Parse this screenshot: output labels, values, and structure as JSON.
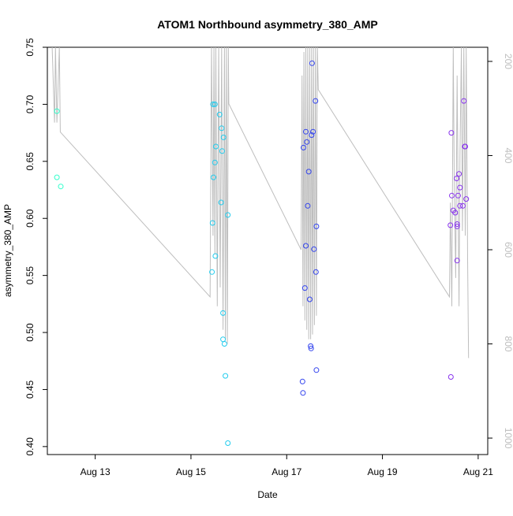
{
  "chart_data": {
    "type": "scatter",
    "title": "ATOM1 Northbound asymmetry_380_AMP",
    "xlabel": "Date",
    "ylabel": "asymmetry_380_AMP",
    "x_unit": "days (August)",
    "xlim": [
      12.0,
      21.2
    ],
    "ylim": [
      0.393,
      0.75
    ],
    "x_ticks": [
      {
        "value": 13,
        "label": "Aug 13"
      },
      {
        "value": 15,
        "label": "Aug 15"
      },
      {
        "value": 17,
        "label": "Aug 17"
      },
      {
        "value": 19,
        "label": "Aug 19"
      },
      {
        "value": 21,
        "label": "Aug 21"
      }
    ],
    "y_ticks": [
      {
        "value": 0.4,
        "label": "0.40"
      },
      {
        "value": 0.45,
        "label": "0.45"
      },
      {
        "value": 0.5,
        "label": "0.50"
      },
      {
        "value": 0.55,
        "label": "0.55"
      },
      {
        "value": 0.6,
        "label": "0.60"
      },
      {
        "value": 0.65,
        "label": "0.65"
      },
      {
        "value": 0.7,
        "label": "0.70"
      },
      {
        "value": 0.75,
        "label": "0.75"
      }
    ],
    "y2_reversed": true,
    "y2lim": [
      170,
      1035
    ],
    "y2_ticks": [
      {
        "value": 200,
        "label": "200"
      },
      {
        "value": 400,
        "label": "400"
      },
      {
        "value": 600,
        "label": "600"
      },
      {
        "value": 800,
        "label": "800"
      },
      {
        "value": 1000,
        "label": "1000"
      }
    ],
    "grid": false,
    "legend": "none",
    "colors": {
      "line": "#bebebe",
      "axis": "#000000",
      "secondary_axis_text": "#bebebe"
    },
    "series": [
      {
        "color": "#33ffcc",
        "points": [
          [
            12.2,
            0.694
          ],
          [
            12.2,
            0.636
          ],
          [
            12.28,
            0.628
          ]
        ]
      },
      {
        "color": "#22ccee",
        "points": [
          [
            15.46,
            0.7
          ],
          [
            15.47,
            0.636
          ],
          [
            15.45,
            0.596
          ],
          [
            15.44,
            0.553
          ],
          [
            15.5,
            0.7
          ],
          [
            15.52,
            0.663
          ],
          [
            15.5,
            0.649
          ],
          [
            15.51,
            0.567
          ],
          [
            15.6,
            0.691
          ],
          [
            15.64,
            0.679
          ],
          [
            15.65,
            0.659
          ],
          [
            15.68,
            0.671
          ],
          [
            15.63,
            0.614
          ],
          [
            15.67,
            0.517
          ],
          [
            15.67,
            0.494
          ],
          [
            15.7,
            0.49
          ],
          [
            15.72,
            0.462
          ],
          [
            15.77,
            0.603
          ],
          [
            15.77,
            0.403
          ]
        ]
      },
      {
        "color": "#3344ee",
        "points": [
          [
            17.35,
            0.662
          ],
          [
            17.38,
            0.539
          ],
          [
            17.4,
            0.676
          ],
          [
            17.4,
            0.576
          ],
          [
            17.42,
            0.667
          ],
          [
            17.44,
            0.611
          ],
          [
            17.46,
            0.641
          ],
          [
            17.48,
            0.529
          ],
          [
            17.5,
            0.488
          ],
          [
            17.51,
            0.486
          ],
          [
            17.52,
            0.673
          ],
          [
            17.53,
            0.736
          ],
          [
            17.55,
            0.676
          ],
          [
            17.57,
            0.573
          ],
          [
            17.6,
            0.703
          ],
          [
            17.62,
            0.593
          ],
          [
            17.61,
            0.553
          ],
          [
            17.62,
            0.467
          ],
          [
            17.33,
            0.457
          ],
          [
            17.34,
            0.447
          ]
        ]
      },
      {
        "color": "#8833ee",
        "points": [
          [
            20.42,
            0.594
          ],
          [
            20.44,
            0.675
          ],
          [
            20.45,
            0.62
          ],
          [
            20.48,
            0.607
          ],
          [
            20.52,
            0.605
          ],
          [
            20.55,
            0.635
          ],
          [
            20.56,
            0.595
          ],
          [
            20.56,
            0.593
          ],
          [
            20.56,
            0.563
          ],
          [
            20.58,
            0.62
          ],
          [
            20.6,
            0.639
          ],
          [
            20.62,
            0.611
          ],
          [
            20.62,
            0.627
          ],
          [
            20.68,
            0.611
          ],
          [
            20.7,
            0.703
          ],
          [
            20.72,
            0.663
          ],
          [
            20.73,
            0.663
          ],
          [
            20.75,
            0.617
          ],
          [
            20.43,
            0.461
          ]
        ]
      }
    ],
    "line_series": {
      "axis": "secondary",
      "points": [
        [
          12.1,
          170
        ],
        [
          12.15,
          330
        ],
        [
          12.17,
          170
        ],
        [
          12.2,
          330
        ],
        [
          12.25,
          170
        ],
        [
          12.27,
          350
        ],
        [
          15.4,
          700
        ],
        [
          15.43,
          170
        ],
        [
          15.46,
          570
        ],
        [
          15.48,
          170
        ],
        [
          15.5,
          610
        ],
        [
          15.52,
          170
        ],
        [
          15.55,
          720
        ],
        [
          15.58,
          170
        ],
        [
          15.61,
          680
        ],
        [
          15.64,
          170
        ],
        [
          15.67,
          770
        ],
        [
          15.7,
          170
        ],
        [
          15.72,
          790
        ],
        [
          15.74,
          170
        ],
        [
          15.76,
          800
        ],
        [
          15.78,
          170
        ],
        [
          15.79,
          290
        ],
        [
          17.3,
          600
        ],
        [
          17.32,
          230
        ],
        [
          17.34,
          720
        ],
        [
          17.36,
          180
        ],
        [
          17.38,
          750
        ],
        [
          17.4,
          170
        ],
        [
          17.42,
          770
        ],
        [
          17.44,
          170
        ],
        [
          17.46,
          790
        ],
        [
          17.48,
          170
        ],
        [
          17.5,
          790
        ],
        [
          17.52,
          170
        ],
        [
          17.54,
          780
        ],
        [
          17.56,
          170
        ],
        [
          17.58,
          760
        ],
        [
          17.6,
          170
        ],
        [
          17.62,
          740
        ],
        [
          17.64,
          170
        ],
        [
          17.66,
          260
        ],
        [
          20.4,
          700
        ],
        [
          20.42,
          500
        ],
        [
          20.45,
          720
        ],
        [
          20.48,
          170
        ],
        [
          20.5,
          440
        ],
        [
          20.53,
          660
        ],
        [
          20.56,
          230
        ],
        [
          20.6,
          720
        ],
        [
          20.62,
          400
        ],
        [
          20.65,
          170
        ],
        [
          20.67,
          560
        ],
        [
          20.7,
          170
        ],
        [
          20.73,
          570
        ],
        [
          20.75,
          170
        ],
        [
          20.78,
          620
        ],
        [
          20.8,
          830
        ]
      ]
    }
  }
}
